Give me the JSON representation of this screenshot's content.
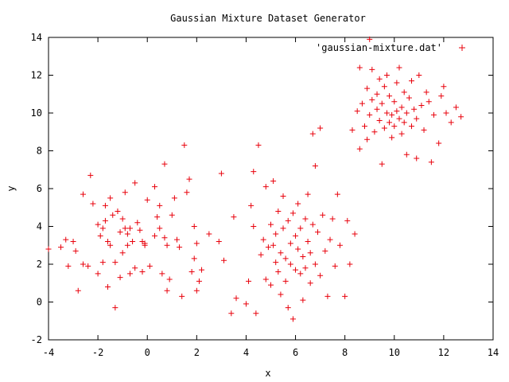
{
  "chart_data": {
    "type": "scatter",
    "title": "Gaussian Mixture Dataset Generator",
    "xlabel": "x",
    "ylabel": "y",
    "xlim": [
      -4,
      14
    ],
    "ylim": [
      -2,
      14
    ],
    "xticks": [
      -4,
      -2,
      0,
      2,
      4,
      6,
      8,
      10,
      12,
      14
    ],
    "yticks": [
      -2,
      0,
      2,
      4,
      6,
      8,
      10,
      12,
      14
    ],
    "grid": false,
    "legend_position": "top-right",
    "series": [
      {
        "name": "'gaussian-mixture.dat'",
        "color": "#e8000b",
        "marker": "plus",
        "points": [
          [
            -4.0,
            2.8
          ],
          [
            -3.5,
            2.9
          ],
          [
            -3.3,
            3.3
          ],
          [
            -3.2,
            1.9
          ],
          [
            -3.0,
            3.2
          ],
          [
            -2.9,
            2.7
          ],
          [
            -2.8,
            0.6
          ],
          [
            -2.6,
            5.7
          ],
          [
            -2.6,
            2.0
          ],
          [
            -2.4,
            1.9
          ],
          [
            -2.3,
            6.7
          ],
          [
            -2.2,
            5.2
          ],
          [
            -2.0,
            4.1
          ],
          [
            -2.0,
            1.5
          ],
          [
            -1.9,
            3.5
          ],
          [
            -1.8,
            3.9
          ],
          [
            -1.8,
            2.1
          ],
          [
            -1.7,
            5.1
          ],
          [
            -1.7,
            4.3
          ],
          [
            -1.6,
            0.8
          ],
          [
            -1.6,
            3.2
          ],
          [
            -1.5,
            3.0
          ],
          [
            -1.5,
            5.5
          ],
          [
            -1.4,
            4.6
          ],
          [
            -1.3,
            2.1
          ],
          [
            -1.3,
            -0.3
          ],
          [
            -1.2,
            4.8
          ],
          [
            -1.1,
            3.7
          ],
          [
            -1.1,
            1.3
          ],
          [
            -1.0,
            4.4
          ],
          [
            -1.0,
            2.6
          ],
          [
            -0.9,
            3.9
          ],
          [
            -0.9,
            5.8
          ],
          [
            -0.8,
            3.6
          ],
          [
            -0.8,
            3.0
          ],
          [
            -0.7,
            1.5
          ],
          [
            -0.7,
            3.9
          ],
          [
            -0.6,
            3.2
          ],
          [
            -0.5,
            6.3
          ],
          [
            -0.5,
            1.8
          ],
          [
            -0.4,
            4.2
          ],
          [
            -0.3,
            3.8
          ],
          [
            -0.2,
            3.2
          ],
          [
            -0.2,
            1.6
          ],
          [
            -0.1,
            3.1
          ],
          [
            -0.1,
            3.0
          ],
          [
            0.0,
            5.4
          ],
          [
            0.1,
            1.9
          ],
          [
            0.3,
            3.5
          ],
          [
            0.3,
            6.1
          ],
          [
            0.4,
            4.5
          ],
          [
            0.5,
            5.1
          ],
          [
            0.5,
            3.9
          ],
          [
            0.6,
            1.5
          ],
          [
            0.7,
            7.3
          ],
          [
            0.7,
            3.4
          ],
          [
            0.8,
            0.6
          ],
          [
            0.8,
            3.0
          ],
          [
            0.9,
            1.2
          ],
          [
            1.0,
            4.6
          ],
          [
            1.1,
            5.5
          ],
          [
            1.2,
            3.3
          ],
          [
            1.3,
            2.9
          ],
          [
            1.4,
            0.3
          ],
          [
            1.5,
            8.3
          ],
          [
            1.6,
            5.8
          ],
          [
            1.7,
            6.5
          ],
          [
            1.8,
            1.6
          ],
          [
            1.9,
            4.0
          ],
          [
            1.9,
            2.3
          ],
          [
            2.0,
            3.1
          ],
          [
            2.0,
            0.6
          ],
          [
            2.1,
            1.1
          ],
          [
            2.2,
            1.7
          ],
          [
            2.5,
            3.6
          ],
          [
            2.9,
            3.2
          ],
          [
            3.0,
            6.8
          ],
          [
            3.1,
            2.2
          ],
          [
            3.4,
            -0.6
          ],
          [
            3.5,
            4.5
          ],
          [
            3.6,
            0.2
          ],
          [
            4.0,
            -0.1
          ],
          [
            4.1,
            1.1
          ],
          [
            4.2,
            5.1
          ],
          [
            4.3,
            6.9
          ],
          [
            4.3,
            4.0
          ],
          [
            4.4,
            -0.6
          ],
          [
            4.5,
            8.3
          ],
          [
            4.6,
            2.5
          ],
          [
            4.7,
            3.3
          ],
          [
            4.8,
            1.2
          ],
          [
            4.8,
            6.1
          ],
          [
            4.9,
            2.9
          ],
          [
            5.0,
            4.1
          ],
          [
            5.0,
            0.9
          ],
          [
            5.1,
            3.0
          ],
          [
            5.1,
            6.4
          ],
          [
            5.2,
            2.1
          ],
          [
            5.2,
            3.6
          ],
          [
            5.3,
            1.6
          ],
          [
            5.3,
            4.8
          ],
          [
            5.4,
            2.6
          ],
          [
            5.4,
            0.4
          ],
          [
            5.5,
            3.9
          ],
          [
            5.5,
            5.6
          ],
          [
            5.6,
            2.3
          ],
          [
            5.6,
            1.1
          ],
          [
            5.7,
            4.3
          ],
          [
            5.7,
            -0.3
          ],
          [
            5.8,
            3.1
          ],
          [
            5.8,
            2.0
          ],
          [
            5.9,
            4.7
          ],
          [
            5.9,
            -0.9
          ],
          [
            6.0,
            3.5
          ],
          [
            6.0,
            1.7
          ],
          [
            6.1,
            2.8
          ],
          [
            6.1,
            5.2
          ],
          [
            6.2,
            1.5
          ],
          [
            6.2,
            3.9
          ],
          [
            6.3,
            2.4
          ],
          [
            6.3,
            0.1
          ],
          [
            6.4,
            4.4
          ],
          [
            6.4,
            1.8
          ],
          [
            6.5,
            3.2
          ],
          [
            6.5,
            5.7
          ],
          [
            6.6,
            2.6
          ],
          [
            6.6,
            1.0
          ],
          [
            6.7,
            4.1
          ],
          [
            6.7,
            8.9
          ],
          [
            6.8,
            2.0
          ],
          [
            6.8,
            7.2
          ],
          [
            6.9,
            3.7
          ],
          [
            7.0,
            9.2
          ],
          [
            7.0,
            1.4
          ],
          [
            7.1,
            4.6
          ],
          [
            7.2,
            2.7
          ],
          [
            7.3,
            0.3
          ],
          [
            7.4,
            3.3
          ],
          [
            7.5,
            4.4
          ],
          [
            7.6,
            1.9
          ],
          [
            7.7,
            5.7
          ],
          [
            7.8,
            3.0
          ],
          [
            8.0,
            0.3
          ],
          [
            8.1,
            4.3
          ],
          [
            8.2,
            2.0
          ],
          [
            8.4,
            3.6
          ],
          [
            8.3,
            9.1
          ],
          [
            8.5,
            10.1
          ],
          [
            8.6,
            8.1
          ],
          [
            8.6,
            12.4
          ],
          [
            8.7,
            10.5
          ],
          [
            8.8,
            9.3
          ],
          [
            8.9,
            11.3
          ],
          [
            8.9,
            8.6
          ],
          [
            9.0,
            13.9
          ],
          [
            9.0,
            9.9
          ],
          [
            9.1,
            12.3
          ],
          [
            9.1,
            10.7
          ],
          [
            9.2,
            9.0
          ],
          [
            9.3,
            11.0
          ],
          [
            9.3,
            10.2
          ],
          [
            9.4,
            9.6
          ],
          [
            9.4,
            11.8
          ],
          [
            9.5,
            10.5
          ],
          [
            9.5,
            7.3
          ],
          [
            9.6,
            9.2
          ],
          [
            9.6,
            11.4
          ],
          [
            9.7,
            10.0
          ],
          [
            9.7,
            12.0
          ],
          [
            9.8,
            9.5
          ],
          [
            9.8,
            10.9
          ],
          [
            9.9,
            9.9
          ],
          [
            9.9,
            8.7
          ],
          [
            10.0,
            10.6
          ],
          [
            10.0,
            9.3
          ],
          [
            10.1,
            11.6
          ],
          [
            10.1,
            10.1
          ],
          [
            10.2,
            9.7
          ],
          [
            10.2,
            12.4
          ],
          [
            10.3,
            10.3
          ],
          [
            10.3,
            8.9
          ],
          [
            10.4,
            9.5
          ],
          [
            10.4,
            11.1
          ],
          [
            10.5,
            10.0
          ],
          [
            10.5,
            7.8
          ],
          [
            10.6,
            10.8
          ],
          [
            10.7,
            9.3
          ],
          [
            10.7,
            11.7
          ],
          [
            10.8,
            10.2
          ],
          [
            10.9,
            9.7
          ],
          [
            10.9,
            7.6
          ],
          [
            11.0,
            12.0
          ],
          [
            11.1,
            10.4
          ],
          [
            11.2,
            9.1
          ],
          [
            11.3,
            11.1
          ],
          [
            11.4,
            10.6
          ],
          [
            11.5,
            7.4
          ],
          [
            11.6,
            9.9
          ],
          [
            11.8,
            8.4
          ],
          [
            11.9,
            10.9
          ],
          [
            12.0,
            11.4
          ],
          [
            12.1,
            10.0
          ],
          [
            12.3,
            9.5
          ],
          [
            12.5,
            10.3
          ],
          [
            12.7,
            9.8
          ]
        ]
      }
    ]
  }
}
